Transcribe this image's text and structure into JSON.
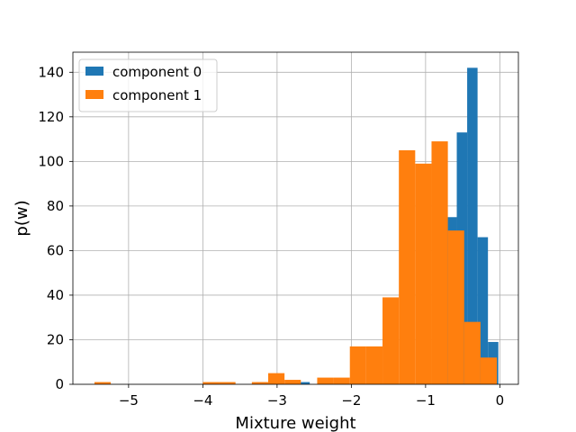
{
  "chart_data": {
    "type": "bar",
    "subtype": "histogram",
    "xlabel": "Mixture weight",
    "ylabel": "p(w)",
    "xlim": [
      -5.75,
      0.25
    ],
    "ylim": [
      0,
      149
    ],
    "xticks": [
      -5,
      -4,
      -3,
      -2,
      -1,
      0
    ],
    "xtick_labels": [
      "−5",
      "−4",
      "−3",
      "−2",
      "−1",
      "0"
    ],
    "yticks": [
      0,
      20,
      40,
      60,
      80,
      100,
      120,
      140
    ],
    "ytick_labels": [
      "0",
      "20",
      "40",
      "60",
      "80",
      "100",
      "120",
      "140"
    ],
    "grid": true,
    "legend_position": "top-left",
    "series": [
      {
        "name": "component 0",
        "color": "#1f77b4",
        "bins": [
          {
            "x0": -3.28,
            "x1": -3.14,
            "value": 1
          },
          {
            "x0": -2.7,
            "x1": -2.56,
            "value": 1
          },
          {
            "x0": -0.72,
            "x1": -0.58,
            "value": 75
          },
          {
            "x0": -0.58,
            "x1": -0.44,
            "value": 113
          },
          {
            "x0": -0.44,
            "x1": -0.3,
            "value": 142
          },
          {
            "x0": -0.3,
            "x1": -0.16,
            "value": 66
          },
          {
            "x0": -0.16,
            "x1": -0.02,
            "value": 19
          }
        ]
      },
      {
        "name": "component 1",
        "color": "#ff7f0e",
        "bins": [
          {
            "x0": -5.46,
            "x1": -5.24,
            "value": 1
          },
          {
            "x0": -4.0,
            "x1": -3.78,
            "value": 1
          },
          {
            "x0": -3.78,
            "x1": -3.56,
            "value": 1
          },
          {
            "x0": -3.34,
            "x1": -3.12,
            "value": 1
          },
          {
            "x0": -3.12,
            "x1": -2.9,
            "value": 5
          },
          {
            "x0": -2.9,
            "x1": -2.68,
            "value": 2
          },
          {
            "x0": -2.46,
            "x1": -2.24,
            "value": 3
          },
          {
            "x0": -2.24,
            "x1": -2.02,
            "value": 3
          },
          {
            "x0": -2.02,
            "x1": -1.8,
            "value": 17
          },
          {
            "x0": -1.8,
            "x1": -1.58,
            "value": 17
          },
          {
            "x0": -1.58,
            "x1": -1.36,
            "value": 39
          },
          {
            "x0": -1.36,
            "x1": -1.14,
            "value": 105
          },
          {
            "x0": -1.14,
            "x1": -0.92,
            "value": 99
          },
          {
            "x0": -0.92,
            "x1": -0.7,
            "value": 109
          },
          {
            "x0": -0.7,
            "x1": -0.48,
            "value": 69
          },
          {
            "x0": -0.48,
            "x1": -0.26,
            "value": 28
          },
          {
            "x0": -0.26,
            "x1": -0.04,
            "value": 12
          }
        ]
      }
    ]
  }
}
